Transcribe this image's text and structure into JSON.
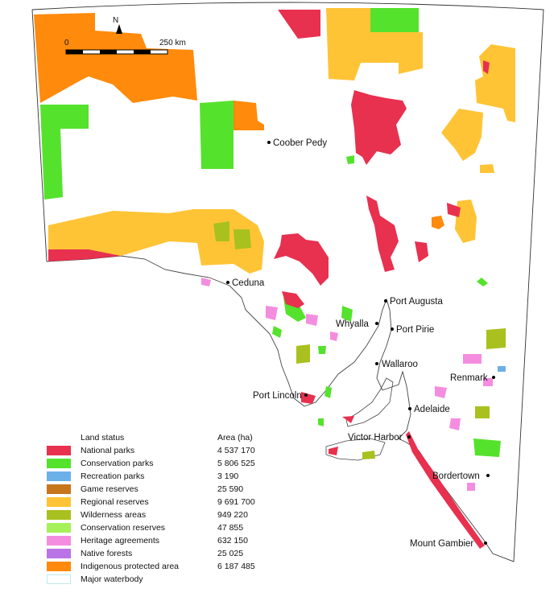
{
  "scale_bar": {
    "start_label": "0",
    "end_label": "250 km",
    "north_label": "N"
  },
  "towns": [
    {
      "name": "Coober Pedy"
    },
    {
      "name": "Ceduna"
    },
    {
      "name": "Port Augusta"
    },
    {
      "name": "Whyalla"
    },
    {
      "name": "Port Pirie"
    },
    {
      "name": "Wallaroo"
    },
    {
      "name": "Renmark"
    },
    {
      "name": "Port Lincoln"
    },
    {
      "name": "Adelaide"
    },
    {
      "name": "Victor Harbor"
    },
    {
      "name": "Bordertown"
    },
    {
      "name": "Mount Gambier"
    }
  ],
  "legend": {
    "title": "Land status",
    "area_header": "Area (ha)",
    "items": [
      {
        "name": "National parks",
        "area": "4 537 170",
        "color": "#e8304f"
      },
      {
        "name": "Conservation parks",
        "area": "5 806 525",
        "color": "#55e22c"
      },
      {
        "name": "Recreation parks",
        "area": "3 190",
        "color": "#6cb0e8"
      },
      {
        "name": "Game reserves",
        "area": "25 590",
        "color": "#c8761c"
      },
      {
        "name": "Regional reserves",
        "area": "9 691 700",
        "color": "#ffc436"
      },
      {
        "name": "Wilderness areas",
        "area": "949 220",
        "color": "#a9c11e"
      },
      {
        "name": "Conservation reserves",
        "area": "47 855",
        "color": "#a6f05a"
      },
      {
        "name": "Heritage agreements",
        "area": "632 150",
        "color": "#f48de0"
      },
      {
        "name": "Native forests",
        "area": "25 025",
        "color": "#b974e6"
      },
      {
        "name": "Indigenous protected area",
        "area": "6 187 485",
        "color": "#ff8a0c"
      },
      {
        "name": "Major waterbody",
        "area": "",
        "color": "#ffffff"
      }
    ]
  }
}
